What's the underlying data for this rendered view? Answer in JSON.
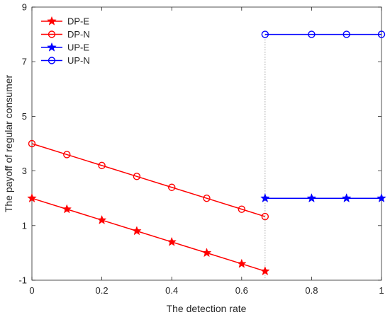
{
  "chart_data": {
    "type": "line",
    "title": "",
    "xlabel": "The detection rate",
    "ylabel": "The payoff of regular consumer",
    "xlim": [
      0,
      1
    ],
    "ylim": [
      -1,
      9
    ],
    "xticks": [
      0,
      0.2,
      0.4,
      0.6,
      0.8,
      1
    ],
    "yticks": [
      -1,
      1,
      3,
      5,
      7,
      9
    ],
    "xtick_labels": [
      "0",
      "0.2",
      "0.4",
      "0.6",
      "0.8",
      "1"
    ],
    "ytick_labels": [
      "-1",
      "1",
      "3",
      "5",
      "7",
      "9"
    ],
    "grid": false,
    "legend_position": "top-left",
    "reference_line": {
      "x": 0.667,
      "style": "dotted",
      "color": "#a0a0a0"
    },
    "series": [
      {
        "name": "DP-E",
        "color": "#ff0000",
        "marker": "star",
        "x": [
          0,
          0.1,
          0.2,
          0.3,
          0.4,
          0.5,
          0.6,
          0.667
        ],
        "y": [
          2.0,
          1.6,
          1.2,
          0.8,
          0.4,
          0.0,
          -0.4,
          -0.67
        ]
      },
      {
        "name": "DP-N",
        "color": "#ff0000",
        "marker": "circle",
        "x": [
          0,
          0.1,
          0.2,
          0.3,
          0.4,
          0.5,
          0.6,
          0.667
        ],
        "y": [
          4.0,
          3.6,
          3.2,
          2.8,
          2.4,
          2.0,
          1.6,
          1.33
        ]
      },
      {
        "name": "UP-E",
        "color": "#0000ff",
        "marker": "star",
        "x": [
          0.667,
          0.8,
          0.9,
          1.0
        ],
        "y": [
          2.0,
          2.0,
          2.0,
          2.0
        ]
      },
      {
        "name": "UP-N",
        "color": "#0000ff",
        "marker": "circle",
        "x": [
          0.667,
          0.8,
          0.9,
          1.0
        ],
        "y": [
          8.0,
          8.0,
          8.0,
          8.0
        ]
      }
    ]
  }
}
